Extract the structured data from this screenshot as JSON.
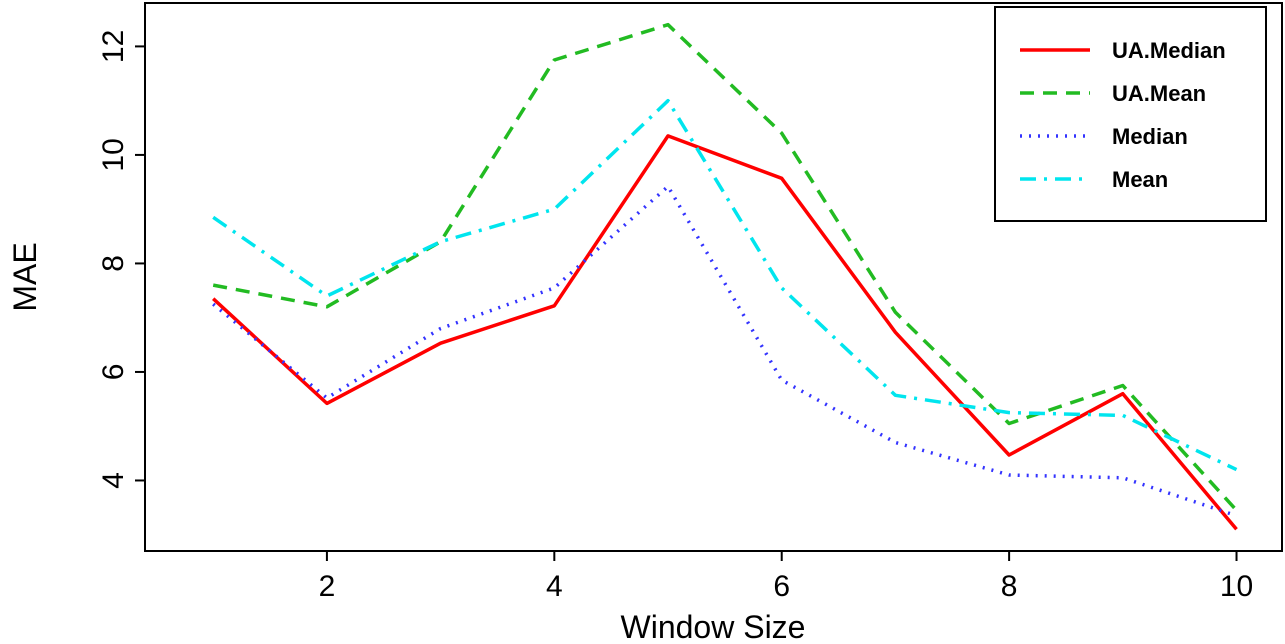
{
  "chart_data": {
    "type": "line",
    "xlabel": "Window Size",
    "ylabel": "MAE",
    "xlim": [
      0.4,
      10.4
    ],
    "ylim": [
      2.7,
      12.8
    ],
    "xticks": [
      2,
      4,
      6,
      8,
      10
    ],
    "yticks": [
      4,
      6,
      8,
      10,
      12
    ],
    "x": [
      1,
      2,
      3,
      4,
      5,
      6,
      7,
      8,
      9,
      10
    ],
    "grid": false,
    "legend_position": "top-right",
    "series": [
      {
        "name": "UA.Median",
        "color": "#ff0000",
        "style": "solid",
        "values": [
          7.35,
          5.42,
          6.53,
          7.22,
          10.35,
          9.57,
          6.73,
          4.47,
          5.6,
          3.1
        ]
      },
      {
        "name": "UA.Mean",
        "color": "#22bb22",
        "style": "dashed",
        "values": [
          7.6,
          7.2,
          8.4,
          11.75,
          12.4,
          10.4,
          7.1,
          5.05,
          5.75,
          3.45
        ]
      },
      {
        "name": "Median",
        "color": "#3333ff",
        "style": "dotted",
        "values": [
          7.25,
          5.52,
          6.8,
          7.55,
          9.42,
          5.85,
          4.7,
          4.1,
          4.05,
          3.35
        ]
      },
      {
        "name": "Mean",
        "color": "#00e5ee",
        "style": "dashdot",
        "values": [
          8.85,
          7.4,
          8.4,
          9.0,
          11.0,
          7.55,
          5.57,
          5.25,
          5.2,
          4.2
        ]
      }
    ]
  }
}
